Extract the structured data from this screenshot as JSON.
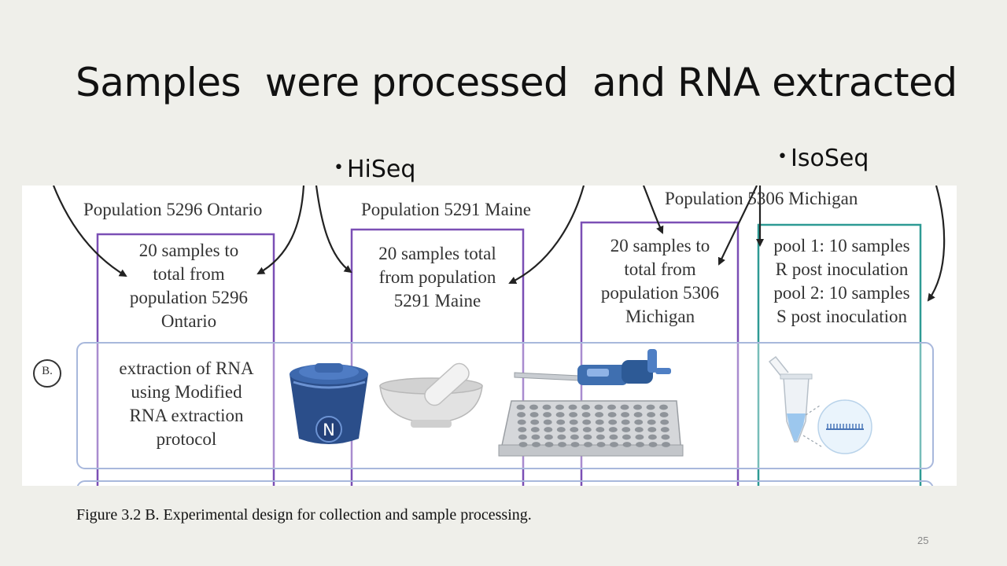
{
  "slide": {
    "title": "Samples  were processed  and RNA extracted",
    "bullets": [
      "HiSeq",
      "IsoSeq"
    ],
    "bullet_glyph": "•",
    "caption": "Figure 3.2 B. Experimental design for collection and sample processing.",
    "page_number": "25"
  },
  "figure": {
    "populations": [
      {
        "label": "Population 5296 Ontario",
        "box_lines": [
          "20  samples to",
          "total from",
          "population 5296",
          "Ontario"
        ],
        "color": "#7b4fb5"
      },
      {
        "label": "Population 5291 Maine",
        "box_lines": [
          "20  samples  total",
          "from population",
          "5291 Maine"
        ],
        "color": "#7b4fb5"
      },
      {
        "label": "Population 5306 Michigan",
        "box_lines": [
          "20  samples to",
          "total from",
          "population 5306",
          "Michigan"
        ],
        "color": "#7b4fb5"
      },
      {
        "label": "",
        "box_lines": [
          "pool 1: 10 samples",
          "R post inoculation",
          "pool 2: 10 samples",
          "S post inoculation"
        ],
        "color": "#2e9a94"
      }
    ],
    "step_marker": "B.",
    "step_lines": [
      "extraction of RNA",
      "using Modified",
      "RNA extraction",
      "protocol"
    ],
    "nitrogen_label": "N",
    "row_border_color": "#a8b8dc"
  }
}
